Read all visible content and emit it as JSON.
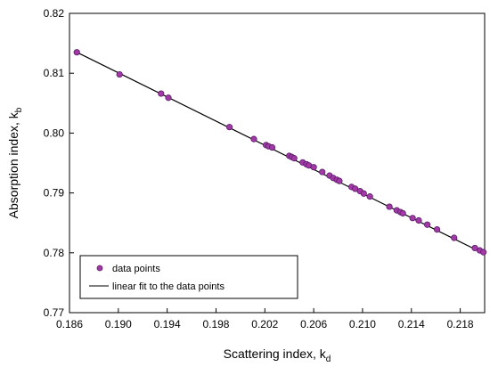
{
  "chart_data": {
    "type": "scatter",
    "title": "",
    "xlabel": {
      "main": "Scattering index, k",
      "sub": "d"
    },
    "ylabel": {
      "main": "Absorption index, k",
      "sub": "b"
    },
    "xlim": [
      0.186,
      0.22
    ],
    "ylim": [
      0.77,
      0.82
    ],
    "xticks": [
      "0.186",
      "0.190",
      "0.194",
      "0.198",
      "0.202",
      "0.206",
      "0.210",
      "0.214",
      "0.218"
    ],
    "yticks": [
      "0.77",
      "0.78",
      "0.79",
      "0.80",
      "0.81",
      "0.82"
    ],
    "grid": false,
    "legend_position": "bottom-left",
    "colors": {
      "marker_fill": "#a23aa6",
      "marker_edge": "#5a1a6a",
      "line": "#000000"
    },
    "series": [
      {
        "name": "data points",
        "kind": "scatter",
        "x": [
          0.1866,
          0.1901,
          0.1935,
          0.1941,
          0.1991,
          0.2011,
          0.2021,
          0.2023,
          0.2026,
          0.204,
          0.2042,
          0.2044,
          0.2051,
          0.2054,
          0.2056,
          0.206,
          0.2067,
          0.2073,
          0.2076,
          0.2079,
          0.2081,
          0.2091,
          0.2094,
          0.2098,
          0.2101,
          0.2106,
          0.2122,
          0.2128,
          0.2131,
          0.2133,
          0.2141,
          0.2146,
          0.2153,
          0.2161,
          0.2175,
          0.2192,
          0.2196,
          0.2199
        ],
        "y": [
          0.8135,
          0.8098,
          0.8066,
          0.8059,
          0.801,
          0.799,
          0.798,
          0.7978,
          0.7976,
          0.7962,
          0.796,
          0.7958,
          0.7951,
          0.7948,
          0.7946,
          0.7943,
          0.7935,
          0.7929,
          0.7925,
          0.7922,
          0.792,
          0.791,
          0.7907,
          0.7903,
          0.7899,
          0.7894,
          0.7877,
          0.7871,
          0.7868,
          0.7866,
          0.7858,
          0.7854,
          0.7847,
          0.7839,
          0.7825,
          0.7808,
          0.7804,
          0.7801
        ]
      },
      {
        "name": "linear fit to the data points",
        "kind": "line",
        "x": [
          0.1866,
          0.22
        ],
        "y": [
          0.8135,
          0.7798
        ]
      }
    ]
  }
}
